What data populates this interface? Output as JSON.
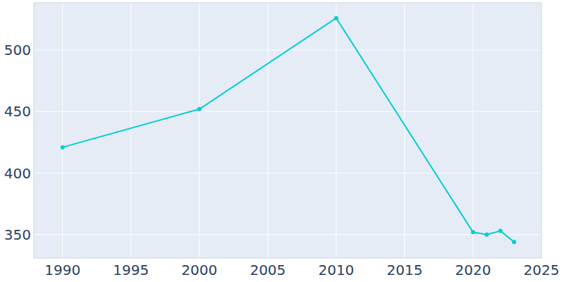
{
  "chart_data": {
    "type": "line",
    "x": [
      1990,
      2000,
      2010,
      2020,
      2021,
      2022,
      2023
    ],
    "series": [
      {
        "name": null,
        "color": "#00ced1",
        "marker": "circle",
        "line_style": "solid",
        "values": [
          421,
          452,
          526,
          352,
          350,
          353,
          344
        ]
      }
    ],
    "xlim": [
      1987.9,
      2025
    ],
    "xticks": [
      1990,
      1995,
      2000,
      2005,
      2010,
      2015,
      2020,
      2025
    ],
    "ylim": [
      331,
      538.4
    ],
    "yticks": [
      350,
      400,
      450,
      500
    ],
    "grid": true
  }
}
